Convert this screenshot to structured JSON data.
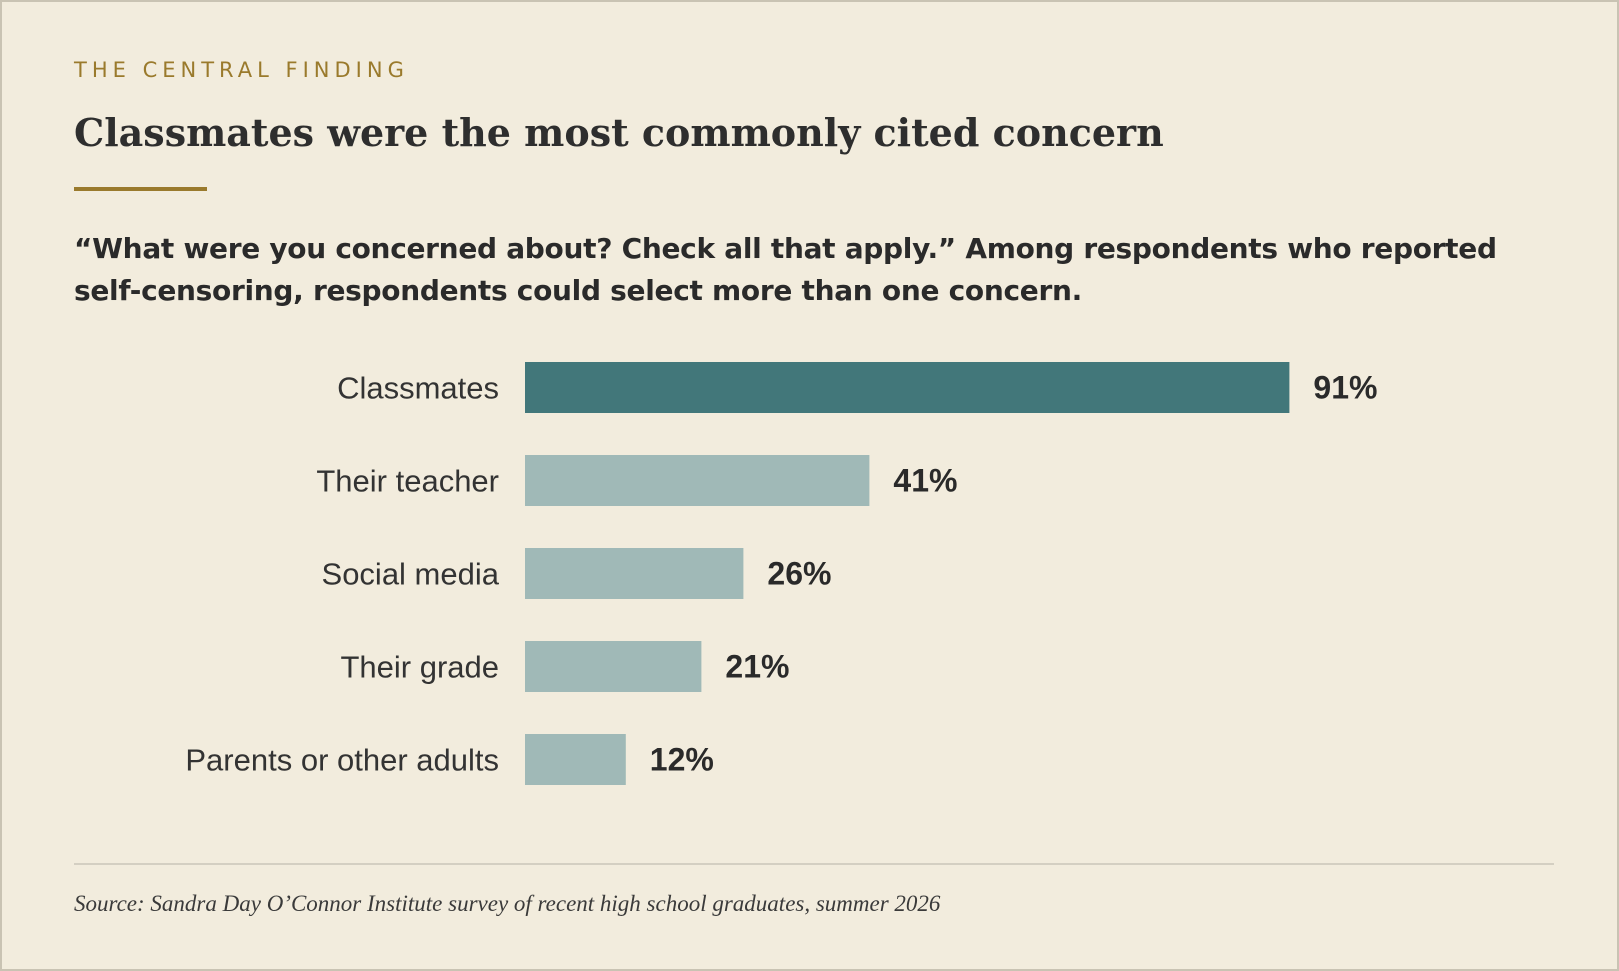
{
  "header": {
    "eyebrow": "THE CENTRAL FINDING",
    "title": "Classmates were the most commonly cited concern",
    "subtitle": "“What were you concerned about? Check all that apply.” Among respondents who reported self-censoring, respondents could select more than one concern."
  },
  "footer": {
    "source": "Source: Sandra Day O’Connor Institute survey of recent high school graduates, summer 2026"
  },
  "colors": {
    "highlight_bar": "#42777a",
    "other_bar": "#a0b9b7",
    "accent": "#9a7a2c",
    "background": "#f2ecdd"
  },
  "chart_data": {
    "type": "bar",
    "orientation": "horizontal",
    "categories": [
      "Classmates",
      "Their teacher",
      "Social media",
      "Their grade",
      "Parents or other adults"
    ],
    "values": [
      91,
      41,
      26,
      21,
      12
    ],
    "value_labels": [
      "91%",
      "41%",
      "26%",
      "21%",
      "12%"
    ],
    "unit": "%",
    "highlight_index": 0,
    "xlim": [
      0,
      100
    ],
    "grid": false,
    "legend": "none"
  }
}
